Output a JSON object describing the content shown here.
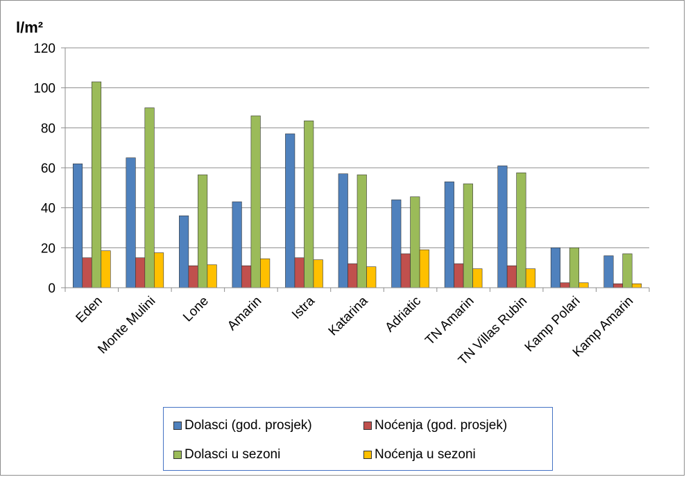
{
  "chart_data": {
    "type": "bar",
    "ylabel": "l/m²",
    "ylim": [
      0,
      120
    ],
    "yticks": [
      0,
      20,
      40,
      60,
      80,
      100,
      120
    ],
    "grid": true,
    "categories": [
      "Eden",
      "Monte Mulini",
      "Lone",
      "Amarin",
      "Istra",
      "Katarina",
      "Adriatic",
      "TN Amarin",
      "TN Villas Rubin",
      "Kamp Polari",
      "Kamp Amarin"
    ],
    "series": [
      {
        "name": "Dolasci (god. prosjek)",
        "color": "#4f81bd",
        "values": [
          62,
          65,
          36,
          43,
          77,
          57,
          44,
          53,
          61,
          20,
          16
        ]
      },
      {
        "name": "Noćenja (god. prosjek)",
        "color": "#c0504d",
        "values": [
          15,
          15,
          11,
          11,
          15,
          12,
          17,
          12,
          11,
          2.5,
          2
        ]
      },
      {
        "name": "Dolasci u sezoni",
        "color": "#9bbb59",
        "values": [
          103,
          90,
          56.5,
          86,
          83.5,
          56.5,
          45.5,
          52,
          57.5,
          20,
          17
        ]
      },
      {
        "name": "Noćenja u sezoni",
        "color": "#ffc000",
        "values": [
          18.5,
          17.5,
          11.5,
          14.5,
          14,
          10.5,
          19,
          9.5,
          9.5,
          2.5,
          2
        ]
      }
    ],
    "legend_position": "bottom"
  }
}
